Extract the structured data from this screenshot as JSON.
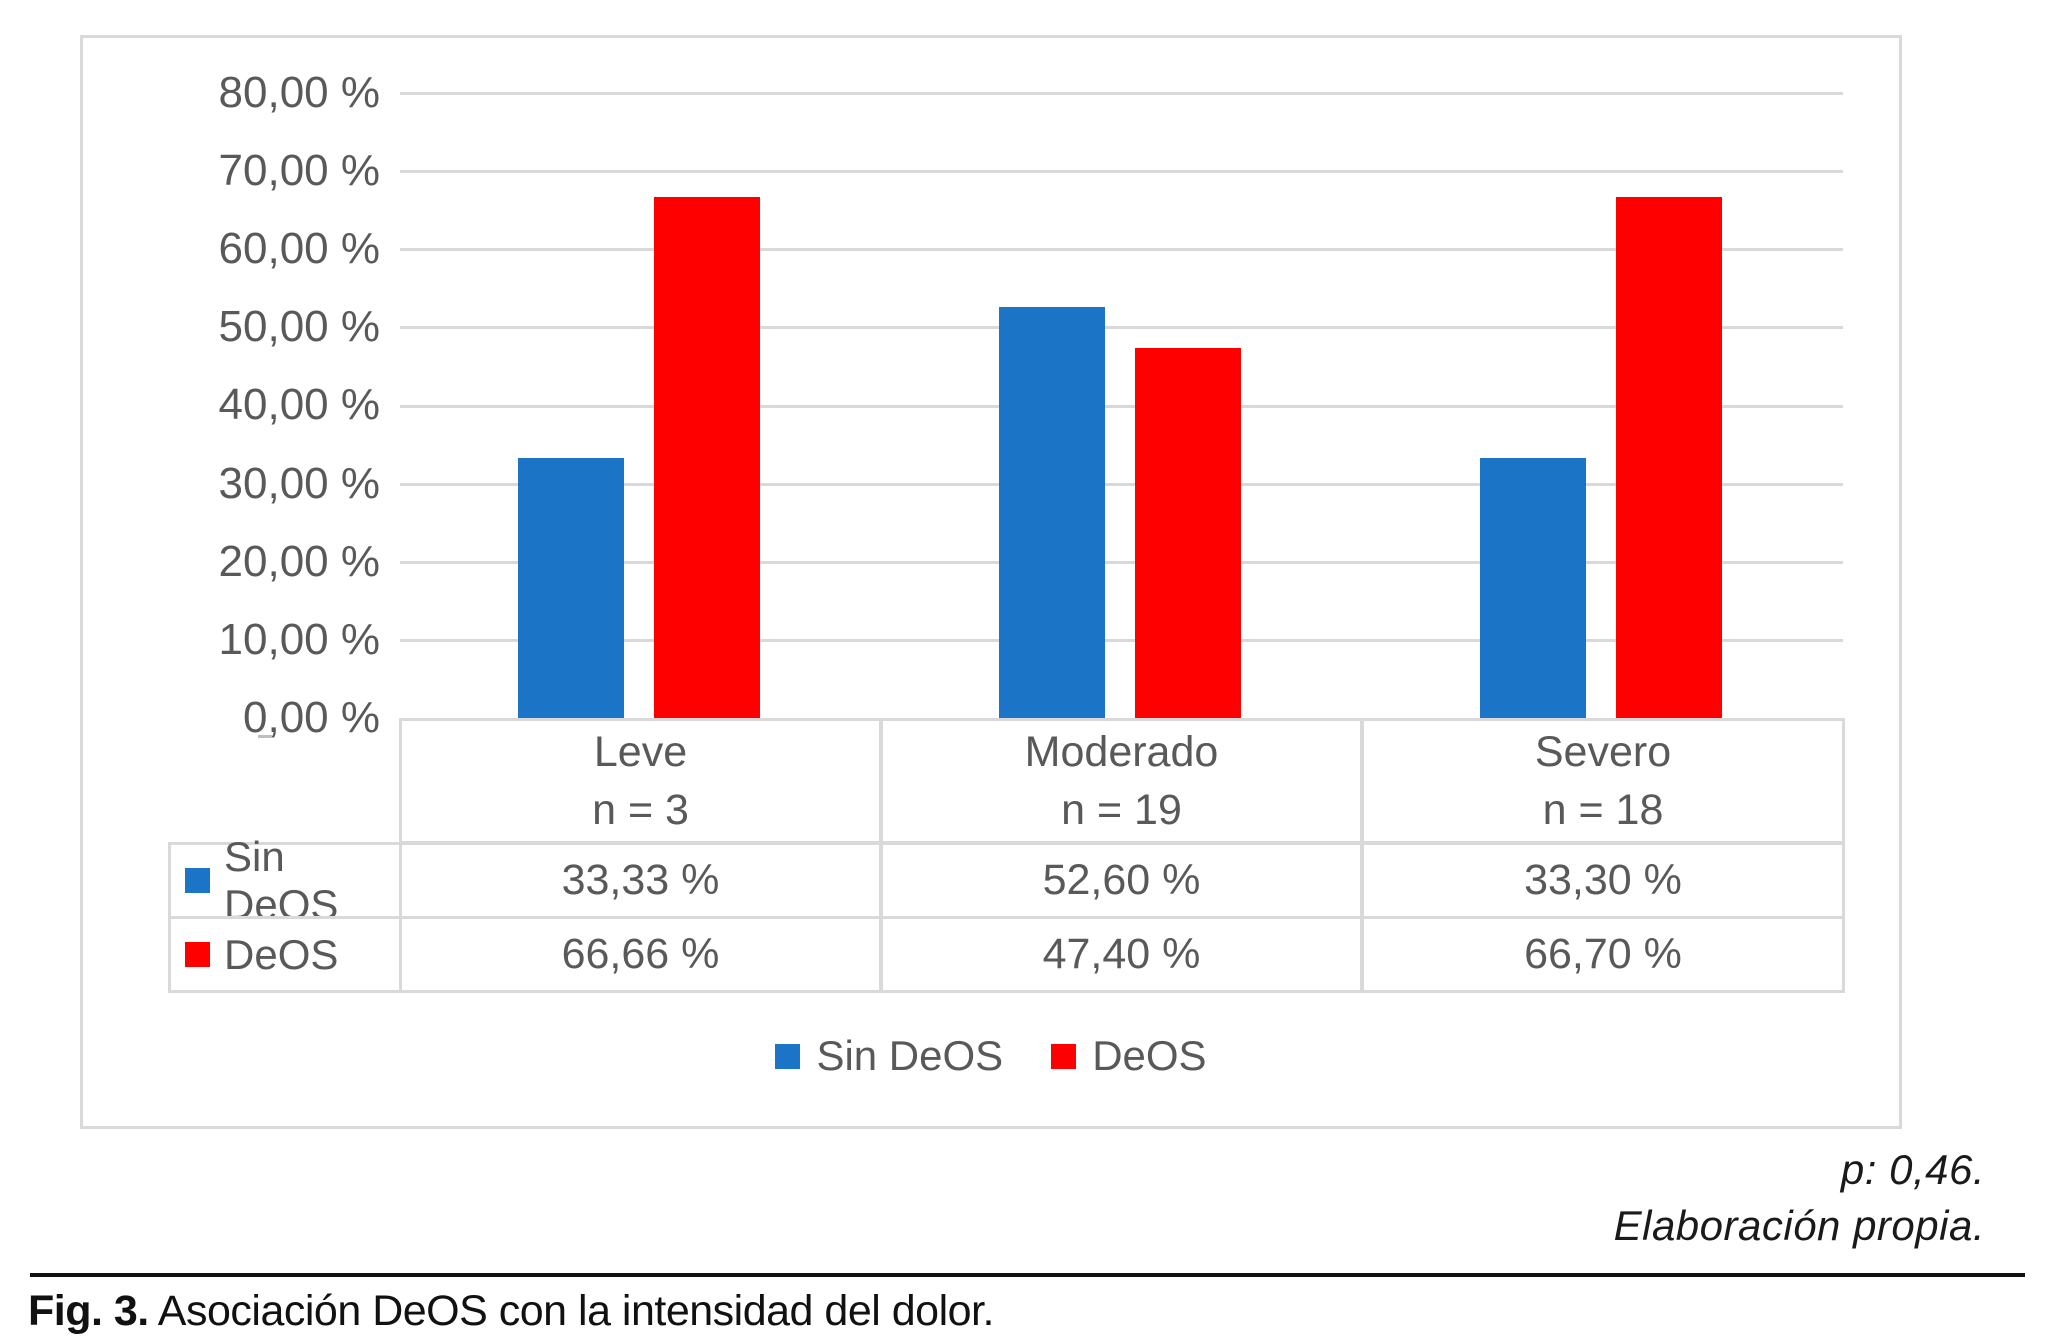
{
  "chart_data": {
    "type": "bar",
    "title": "",
    "categories": [
      "Leve",
      "Moderado",
      "Severo"
    ],
    "category_sublabels": [
      "n = 3",
      "n = 19",
      "n = 18"
    ],
    "series": [
      {
        "name": "Sin DeOS",
        "color": "#1C74C6",
        "values": [
          33.33,
          52.6,
          33.3
        ],
        "value_labels": [
          "33,33 %",
          "52,60 %",
          "33,30 %"
        ]
      },
      {
        "name": "DeOS",
        "color": "#FF0000",
        "values": [
          66.66,
          47.4,
          66.7
        ],
        "value_labels": [
          "66,66 %",
          "47,40 %",
          "66,70 %"
        ]
      }
    ],
    "ylim": [
      0,
      80
    ],
    "yticks": [
      "80,00 %",
      "70,00 %",
      "60,00 %",
      "50,00 %",
      "40,00 %",
      "30,00 %",
      "20,00 %",
      "10,00 %",
      "0,00 %"
    ],
    "grid": true,
    "legend_position": "bottom",
    "data_table_shown": true
  },
  "annotations": {
    "p_value": "p: 0,46.",
    "source": "Elaboración propia."
  },
  "caption": {
    "label": "Fig. 3.",
    "text": " Asociación DeOS con la intensidad del dolor."
  }
}
